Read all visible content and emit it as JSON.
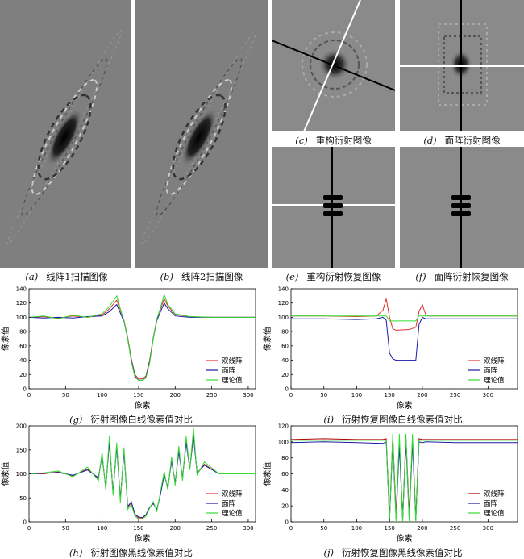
{
  "figure": {
    "captions": {
      "a": {
        "label": "(a)",
        "text": "线阵1扫描图像"
      },
      "b": {
        "label": "(b)",
        "text": "线阵2扫描图像"
      },
      "c": {
        "label": "(c)",
        "text": "重构衍射图像"
      },
      "d": {
        "label": "(d)",
        "text": "面阵衍射图像"
      },
      "e": {
        "label": "(e)",
        "text": "重构衍射恢复图像"
      },
      "f": {
        "label": "(f)",
        "text": "面阵衍射恢复图像"
      },
      "g": {
        "label": "(g)",
        "text": "衍射图像白线像素值对比"
      },
      "i": {
        "label": "(i)",
        "text": "衍射恢复图像白线像素值对比"
      },
      "h": {
        "label": "(h)",
        "text": "衍射图像黑线像素值对比"
      },
      "j": {
        "label": "(j)",
        "text": "衍射恢复图像黑线像素值对比"
      }
    },
    "colors": {
      "background_gray": "#7f7f7f",
      "red": "#e0302a",
      "blue": "#1a1aa8",
      "green": "#33dd33"
    }
  },
  "chart_data": [
    {
      "id": "g",
      "type": "line",
      "xlabel": "像素",
      "ylabel": "像素值",
      "xlim": [
        0,
        310
      ],
      "ylim": [
        0,
        140
      ],
      "xticks": [
        "0",
        "50",
        "100",
        "150",
        "200",
        "250",
        "300"
      ],
      "yticks": [
        "0",
        "20",
        "40",
        "60",
        "80",
        "100",
        "120",
        "140"
      ],
      "legend": "bottom-right",
      "series": [
        {
          "name": "双线阵",
          "color": "#e0302a",
          "x": [
            0,
            20,
            40,
            60,
            80,
            100,
            110,
            120,
            125,
            130,
            135,
            140,
            145,
            150,
            155,
            160,
            165,
            170,
            175,
            180,
            185,
            190,
            200,
            220,
            250,
            280,
            310
          ],
          "y": [
            100,
            101,
            99,
            102,
            100,
            103,
            112,
            124,
            110,
            96,
            72,
            42,
            20,
            14,
            14,
            18,
            40,
            72,
            98,
            112,
            126,
            116,
            104,
            101,
            100,
            100,
            100
          ]
        },
        {
          "name": "面阵",
          "color": "#1a1aa8",
          "x": [
            0,
            20,
            40,
            60,
            80,
            100,
            110,
            120,
            125,
            130,
            135,
            140,
            145,
            150,
            155,
            160,
            165,
            170,
            175,
            180,
            185,
            190,
            200,
            220,
            250,
            280,
            310
          ],
          "y": [
            100,
            99,
            100,
            99,
            101,
            102,
            108,
            118,
            106,
            94,
            70,
            40,
            18,
            12,
            12,
            16,
            38,
            70,
            96,
            108,
            120,
            112,
            102,
            100,
            100,
            100,
            100
          ]
        },
        {
          "name": "理论值",
          "color": "#33dd33",
          "x": [
            0,
            20,
            40,
            60,
            80,
            100,
            110,
            120,
            125,
            130,
            135,
            140,
            145,
            150,
            155,
            160,
            165,
            170,
            175,
            180,
            185,
            190,
            200,
            220,
            250,
            280,
            310
          ],
          "y": [
            100,
            102,
            98,
            103,
            100,
            105,
            115,
            130,
            112,
            95,
            70,
            38,
            16,
            12,
            12,
            15,
            36,
            70,
            98,
            114,
            132,
            118,
            105,
            101,
            100,
            100,
            100
          ]
        }
      ]
    },
    {
      "id": "i",
      "type": "line",
      "xlabel": "像素",
      "ylabel": "像素值",
      "xlim": [
        0,
        345
      ],
      "ylim": [
        0,
        140
      ],
      "xticks": [
        "0",
        "50",
        "100",
        "150",
        "200",
        "250",
        "300"
      ],
      "yticks": [
        "0",
        "20",
        "40",
        "60",
        "80",
        "100",
        "120",
        "140"
      ],
      "legend": "bottom-right",
      "series": [
        {
          "name": "双线阵",
          "color": "#e0302a",
          "x": [
            0,
            50,
            100,
            130,
            140,
            145,
            150,
            155,
            160,
            180,
            190,
            195,
            200,
            205,
            210,
            250,
            300,
            345
          ],
          "y": [
            102,
            102,
            101,
            102,
            110,
            126,
            100,
            84,
            82,
            83,
            86,
            108,
            118,
            104,
            102,
            102,
            102,
            102
          ]
        },
        {
          "name": "面阵",
          "color": "#1a1aa8",
          "x": [
            0,
            50,
            100,
            130,
            140,
            145,
            150,
            155,
            160,
            180,
            190,
            195,
            200,
            205,
            210,
            250,
            300,
            345
          ],
          "y": [
            98,
            98,
            97,
            98,
            100,
            96,
            50,
            42,
            40,
            40,
            40,
            90,
            100,
            98,
            98,
            98,
            98,
            98
          ]
        },
        {
          "name": "理论值",
          "color": "#33dd33",
          "x": [
            0,
            50,
            100,
            130,
            140,
            145,
            150,
            155,
            160,
            180,
            190,
            195,
            200,
            205,
            210,
            250,
            300,
            345
          ],
          "y": [
            102,
            102,
            102,
            102,
            102,
            102,
            95,
            95,
            95,
            95,
            95,
            102,
            102,
            102,
            102,
            102,
            102,
            102
          ]
        }
      ]
    },
    {
      "id": "h",
      "type": "line",
      "xlabel": "像素",
      "ylabel": "像素值",
      "xlim": [
        0,
        310
      ],
      "ylim": [
        0,
        200
      ],
      "xticks": [
        "0",
        "50",
        "100",
        "150",
        "200",
        "250",
        "300"
      ],
      "yticks": [
        "0",
        "50",
        "100",
        "150",
        "200"
      ],
      "legend": "bottom-right",
      "series": [
        {
          "name": "双线阵",
          "color": "#e0302a",
          "x": [
            0,
            20,
            40,
            60,
            80,
            95,
            100,
            105,
            110,
            115,
            120,
            125,
            130,
            135,
            140,
            145,
            150,
            155,
            160,
            165,
            170,
            175,
            180,
            185,
            190,
            195,
            200,
            205,
            210,
            215,
            220,
            225,
            230,
            240,
            260,
            280,
            310
          ],
          "y": [
            100,
            100,
            104,
            96,
            110,
            90,
            140,
            70,
            170,
            60,
            160,
            45,
            150,
            30,
            40,
            15,
            8,
            8,
            14,
            30,
            40,
            25,
            60,
            100,
            70,
            130,
            80,
            150,
            90,
            170,
            110,
            185,
            100,
            120,
            100,
            100,
            100
          ]
        },
        {
          "name": "面阵",
          "color": "#1a1aa8",
          "x": [
            0,
            20,
            40,
            60,
            80,
            95,
            100,
            105,
            110,
            115,
            120,
            125,
            130,
            135,
            140,
            145,
            150,
            155,
            160,
            165,
            170,
            175,
            180,
            185,
            190,
            195,
            200,
            205,
            210,
            215,
            220,
            225,
            230,
            240,
            260,
            280,
            310
          ],
          "y": [
            100,
            101,
            103,
            97,
            108,
            92,
            138,
            72,
            165,
            62,
            155,
            48,
            145,
            32,
            42,
            16,
            10,
            9,
            15,
            30,
            38,
            26,
            58,
            98,
            72,
            126,
            82,
            146,
            92,
            165,
            110,
            178,
            102,
            118,
            100,
            100,
            100
          ]
        },
        {
          "name": "理论值",
          "color": "#33dd33",
          "x": [
            0,
            20,
            40,
            60,
            80,
            95,
            100,
            105,
            110,
            115,
            120,
            125,
            130,
            135,
            140,
            145,
            150,
            155,
            160,
            165,
            170,
            175,
            180,
            185,
            190,
            195,
            200,
            205,
            210,
            215,
            220,
            225,
            230,
            240,
            260,
            280,
            310
          ],
          "y": [
            100,
            102,
            106,
            94,
            114,
            86,
            145,
            66,
            180,
            55,
            165,
            40,
            155,
            26,
            36,
            12,
            6,
            6,
            12,
            28,
            42,
            22,
            64,
            105,
            66,
            135,
            76,
            158,
            86,
            178,
            108,
            195,
            98,
            125,
            100,
            100,
            100
          ]
        }
      ]
    },
    {
      "id": "j",
      "type": "line",
      "xlabel": "像素",
      "ylabel": "像素值",
      "xlim": [
        0,
        345
      ],
      "ylim": [
        0,
        120
      ],
      "xticks": [
        "0",
        "50",
        "100",
        "150",
        "200",
        "250",
        "300"
      ],
      "yticks": [
        "0",
        "20",
        "40",
        "60",
        "80",
        "100",
        "120"
      ],
      "legend": "bottom-right",
      "series": [
        {
          "name": "双线阵",
          "color": "#b00000",
          "x": [
            0,
            50,
            100,
            140,
            145,
            150,
            155,
            160,
            165,
            170,
            175,
            180,
            185,
            190,
            195,
            200,
            205,
            250,
            300,
            345
          ],
          "y": [
            103,
            104,
            103,
            103,
            104,
            5,
            108,
            10,
            100,
            5,
            108,
            10,
            104,
            6,
            104,
            103,
            103,
            103,
            103,
            103
          ]
        },
        {
          "name": "面阵",
          "color": "#1a1aa8",
          "x": [
            0,
            50,
            100,
            140,
            145,
            150,
            155,
            160,
            165,
            170,
            175,
            180,
            185,
            190,
            195,
            200,
            205,
            250,
            300,
            345
          ],
          "y": [
            99,
            100,
            99,
            98,
            100,
            2,
            100,
            3,
            95,
            2,
            100,
            3,
            98,
            2,
            100,
            99,
            100,
            99,
            99,
            99
          ]
        },
        {
          "name": "理论值",
          "color": "#33dd33",
          "x": [
            0,
            50,
            100,
            140,
            145,
            150,
            155,
            160,
            165,
            170,
            175,
            180,
            185,
            190,
            195,
            200,
            205,
            250,
            300,
            345
          ],
          "y": [
            102,
            102,
            102,
            102,
            102,
            0,
            110,
            0,
            110,
            0,
            110,
            0,
            110,
            0,
            102,
            102,
            102,
            102,
            102,
            102
          ]
        }
      ]
    }
  ]
}
